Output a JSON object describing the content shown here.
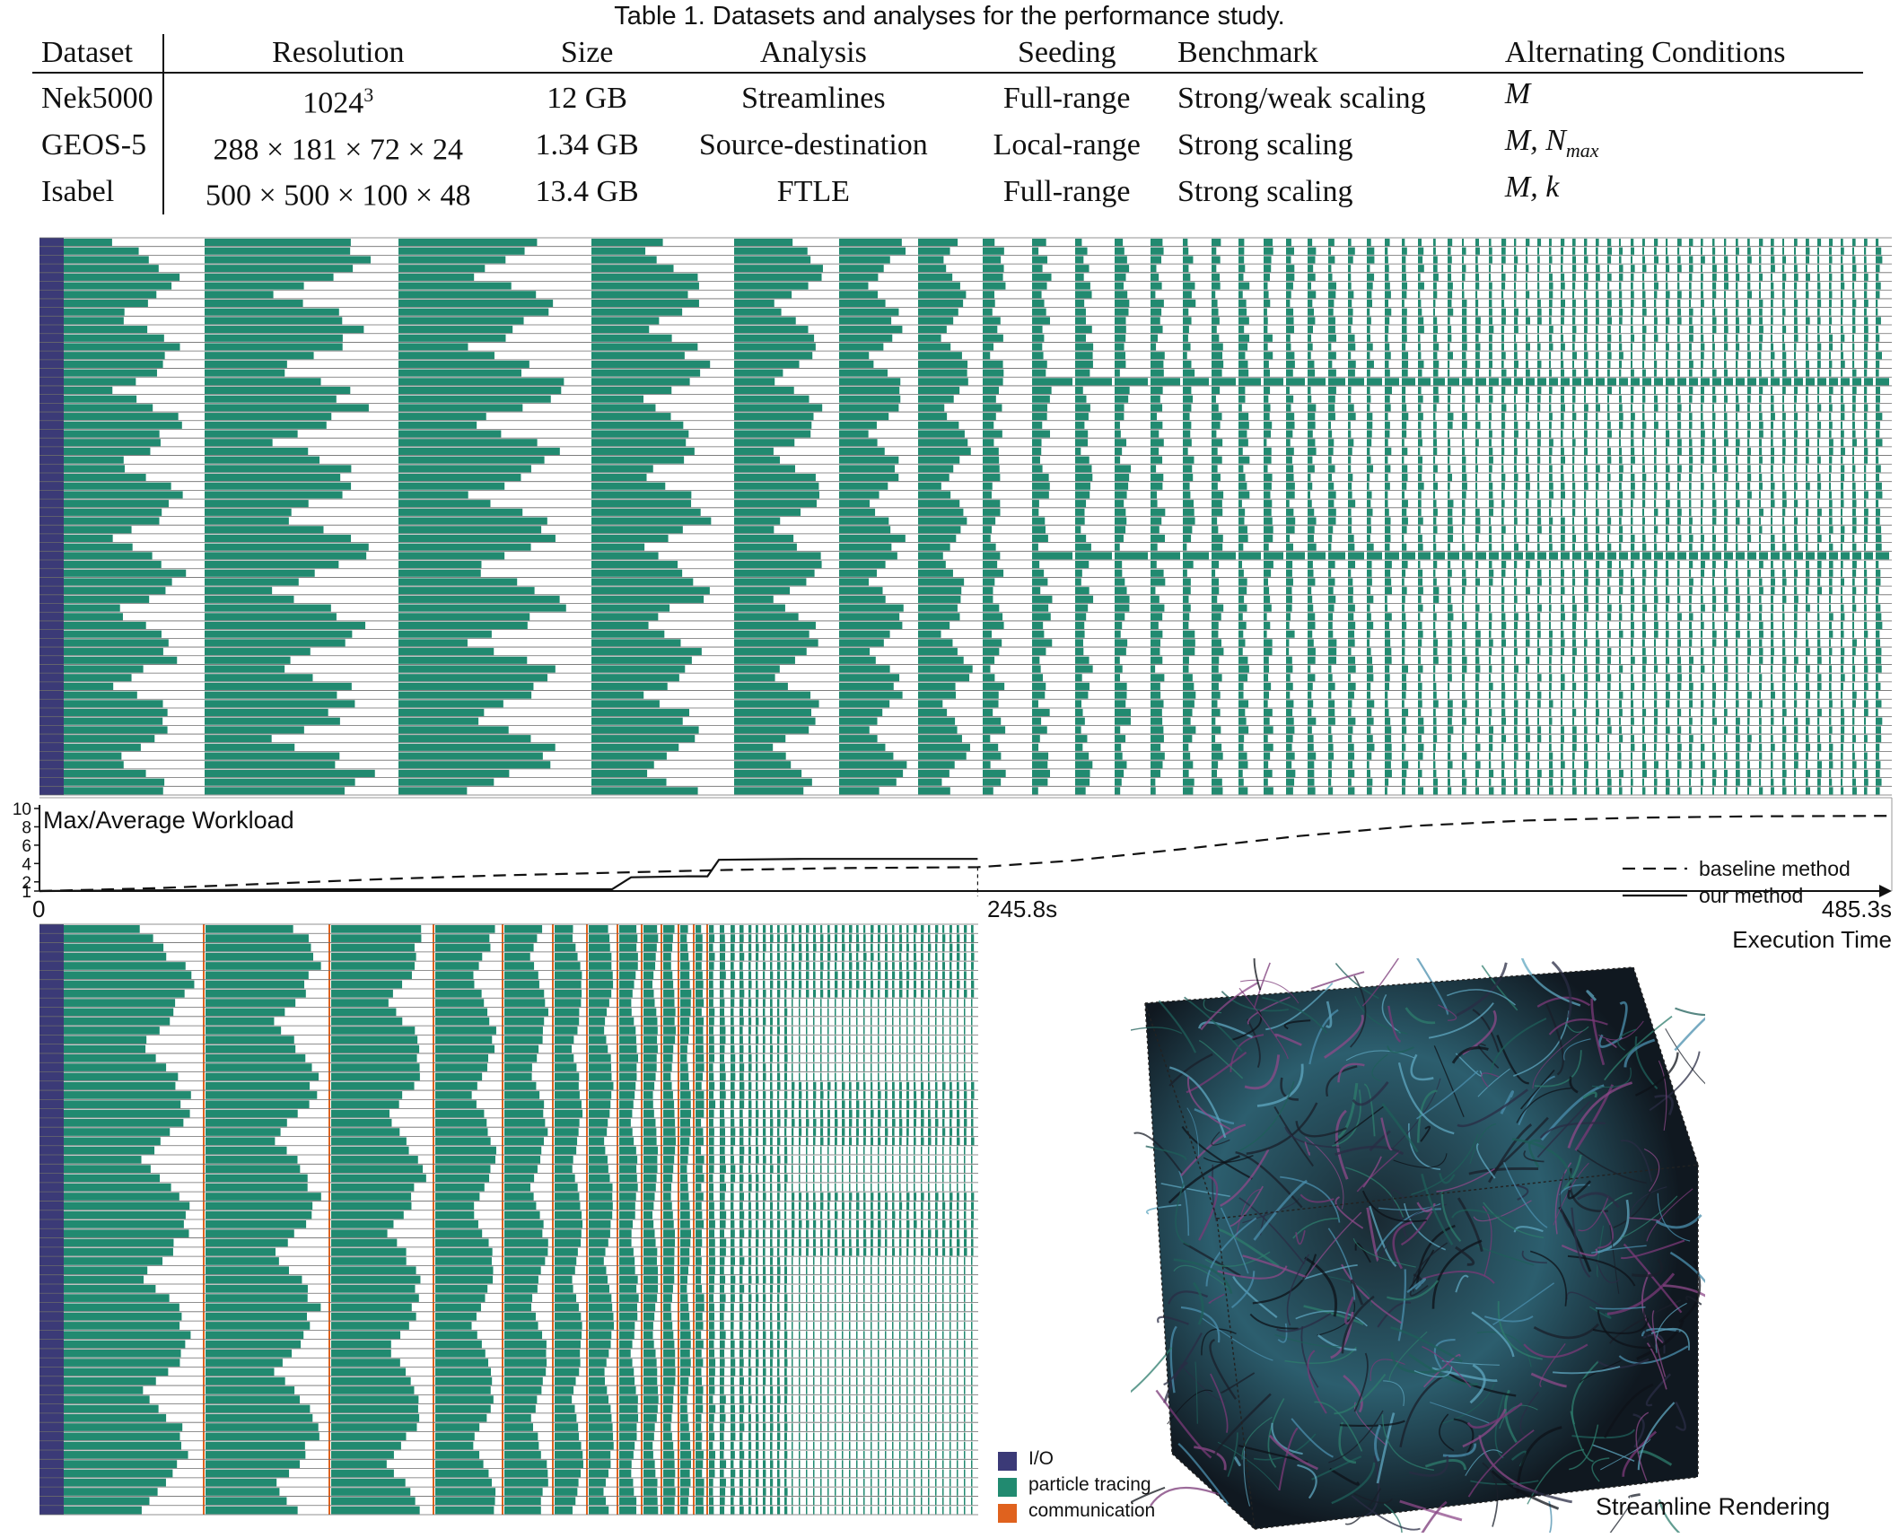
{
  "caption": "Table 1. Datasets and analyses for the performance study.",
  "table": {
    "headers": [
      "Dataset",
      "Resolution",
      "Size",
      "Analysis",
      "Seeding",
      "Benchmark",
      "Alternating Conditions"
    ],
    "rows": [
      {
        "dataset": "Nek5000",
        "resolution": "1024",
        "resolution_sup": "3",
        "size": "12 GB",
        "analysis": "Streamlines",
        "seeding": "Full-range",
        "benchmark": "Strong/weak scaling",
        "conditions": "M",
        "conditions_sub": ""
      },
      {
        "dataset": "GEOS-5",
        "resolution": "288 × 181 × 72 × 24",
        "resolution_sup": "",
        "size": "1.34 GB",
        "analysis": "Source-destination",
        "seeding": "Local-range",
        "benchmark": "Strong scaling",
        "conditions": "M, N",
        "conditions_sub": "max"
      },
      {
        "dataset": "Isabel",
        "resolution": "500 × 500 × 100 × 48",
        "resolution_sup": "",
        "size": "13.4 GB",
        "analysis": "FTLE",
        "seeding": "Full-range",
        "benchmark": "Strong scaling",
        "conditions": "M, k",
        "conditions_sub": ""
      }
    ]
  },
  "chart_data": {
    "type": "line",
    "title": "Max/Average Workload",
    "xlabel": "Execution Time",
    "ylabel": "",
    "xlim": [
      0,
      485.3
    ],
    "ylim": [
      1,
      10
    ],
    "y_ticks": [
      "1",
      "2",
      "4",
      "6",
      "8",
      "10"
    ],
    "x_tick_labels": [
      "0",
      "245.8s",
      "485.3s"
    ],
    "series": [
      {
        "name": "baseline method",
        "style": "dashed",
        "x": [
          0,
          30,
          60,
          90,
          120,
          150,
          180,
          210,
          245.8,
          270,
          300,
          330,
          360,
          390,
          420,
          450,
          485.3
        ],
        "y": [
          1.0,
          1.3,
          1.8,
          2.3,
          2.7,
          3.0,
          3.3,
          3.5,
          3.6,
          4.3,
          5.6,
          7.0,
          8.1,
          8.7,
          9.0,
          9.15,
          9.2
        ]
      },
      {
        "name": "our method",
        "style": "solid",
        "x": [
          0,
          40,
          80,
          120,
          150,
          155,
          170,
          175,
          178,
          200,
          245.8
        ],
        "y": [
          1.0,
          1.1,
          1.2,
          1.2,
          1.2,
          2.5,
          2.6,
          2.6,
          4.4,
          4.5,
          4.5
        ]
      }
    ]
  },
  "gantt_legend": [
    {
      "label": "I/O",
      "color": "#3b3a77"
    },
    {
      "label": "particle tracing",
      "color": "#218a70"
    },
    {
      "label": "communication",
      "color": "#e0621e"
    }
  ],
  "rendering_title": "Streamline Rendering",
  "colors": {
    "io": "#3b3a77",
    "tracing": "#218a70",
    "comm": "#e0621e"
  }
}
